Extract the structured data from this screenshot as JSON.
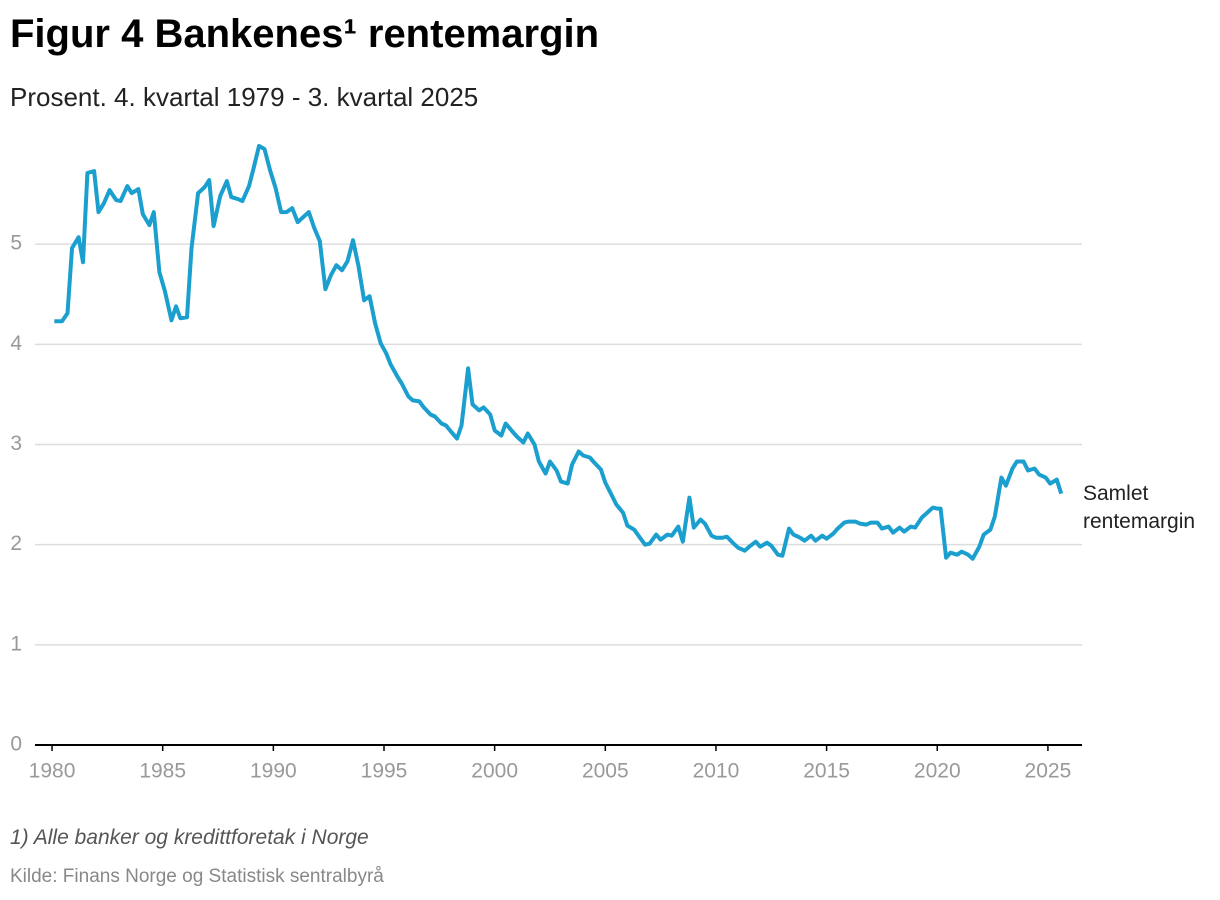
{
  "chart_data": {
    "type": "line",
    "title": "Figur 4 Bankenes¹ rentemargin",
    "subtitle": "Prosent. 4. kvartal 1979 - 3. kvartal 2025",
    "footnote": "1) Alle banker og kredittforetak i Norge",
    "source": "Kilde: Finans Norge og Statistisk sentralbyrå",
    "x": [
      1980.1,
      1980.45,
      1980.7,
      1980.9,
      1981.2,
      1981.4,
      1981.6,
      1981.9,
      1982.1,
      1982.35,
      1982.6,
      1982.9,
      1983.1,
      1983.4,
      1983.6,
      1983.9,
      1984.1,
      1984.4,
      1984.6,
      1984.85,
      1985.1,
      1985.4,
      1985.6,
      1985.8,
      1986.1,
      1986.3,
      1986.6,
      1986.9,
      1987.1,
      1987.3,
      1987.6,
      1987.9,
      1988.1,
      1988.4,
      1988.6,
      1988.9,
      1989.1,
      1989.35,
      1989.6,
      1989.85,
      1990.1,
      1990.35,
      1990.6,
      1990.85,
      1991.1,
      1991.35,
      1991.6,
      1991.85,
      1992.1,
      1992.35,
      1992.6,
      1992.85,
      1993.1,
      1993.35,
      1993.6,
      1993.85,
      1994.1,
      1994.35,
      1994.6,
      1994.85,
      1995.1,
      1995.3,
      1995.6,
      1995.8,
      1996.1,
      1996.3,
      1996.6,
      1996.8,
      1997.1,
      1997.3,
      1997.6,
      1997.8,
      1998.1,
      1998.3,
      1998.5,
      1998.8,
      1999.0,
      1999.3,
      1999.5,
      1999.8,
      2000.0,
      2000.3,
      2000.5,
      2000.8,
      2001.0,
      2001.3,
      2001.5,
      2001.8,
      2002.0,
      2002.3,
      2002.5,
      2002.8,
      2003.0,
      2003.3,
      2003.5,
      2003.8,
      2004.0,
      2004.3,
      2004.5,
      2004.8,
      2005.0,
      2005.3,
      2005.5,
      2005.8,
      2006.0,
      2006.3,
      2006.5,
      2006.8,
      2007.0,
      2007.3,
      2007.5,
      2007.8,
      2008.0,
      2008.3,
      2008.5,
      2008.8,
      2009.0,
      2009.3,
      2009.5,
      2009.8,
      2010.0,
      2010.3,
      2010.5,
      2010.8,
      2011.0,
      2011.3,
      2011.5,
      2011.8,
      2012.0,
      2012.3,
      2012.5,
      2012.8,
      2013.0,
      2013.3,
      2013.5,
      2013.8,
      2014.0,
      2014.3,
      2014.5,
      2014.8,
      2015.0,
      2015.3,
      2015.5,
      2015.8,
      2016.0,
      2016.3,
      2016.5,
      2016.8,
      2017.0,
      2017.3,
      2017.5,
      2017.8,
      2018.0,
      2018.3,
      2018.5,
      2018.8,
      2019.0,
      2019.3,
      2019.5,
      2019.8,
      2020.0,
      2020.15,
      2020.4,
      2020.6,
      2020.9,
      2021.1,
      2021.4,
      2021.6,
      2021.9,
      2022.1,
      2022.4,
      2022.6,
      2022.9,
      2023.1,
      2023.4,
      2023.6,
      2023.9,
      2024.1,
      2024.4,
      2024.6,
      2024.9,
      2025.1,
      2025.4,
      2025.6
    ],
    "series": [
      {
        "name": "Samlet rentemargin",
        "color": "#1a9fcf",
        "values": [
          4.23,
          4.23,
          4.31,
          4.96,
          5.07,
          4.82,
          5.71,
          5.73,
          5.32,
          5.41,
          5.54,
          5.44,
          5.43,
          5.58,
          5.51,
          5.55,
          5.3,
          5.19,
          5.32,
          4.72,
          4.53,
          4.24,
          4.38,
          4.26,
          4.27,
          4.96,
          5.51,
          5.57,
          5.64,
          5.18,
          5.48,
          5.63,
          5.47,
          5.45,
          5.43,
          5.58,
          5.75,
          5.98,
          5.95,
          5.74,
          5.56,
          5.32,
          5.32,
          5.36,
          5.22,
          5.27,
          5.32,
          5.16,
          5.03,
          4.55,
          4.69,
          4.79,
          4.74,
          4.83,
          5.04,
          4.78,
          4.44,
          4.48,
          4.21,
          4.01,
          3.91,
          3.8,
          3.68,
          3.61,
          3.48,
          3.44,
          3.43,
          3.37,
          3.3,
          3.28,
          3.21,
          3.19,
          3.11,
          3.06,
          3.19,
          3.76,
          3.4,
          3.34,
          3.37,
          3.3,
          3.14,
          3.09,
          3.21,
          3.13,
          3.08,
          3.02,
          3.11,
          3.0,
          2.83,
          2.71,
          2.83,
          2.74,
          2.63,
          2.61,
          2.8,
          2.93,
          2.89,
          2.87,
          2.82,
          2.75,
          2.62,
          2.49,
          2.4,
          2.32,
          2.19,
          2.15,
          2.09,
          2.0,
          2.01,
          2.1,
          2.05,
          2.1,
          2.09,
          2.18,
          2.03,
          2.47,
          2.17,
          2.25,
          2.21,
          2.09,
          2.07,
          2.07,
          2.08,
          2.01,
          1.97,
          1.94,
          1.98,
          2.03,
          1.98,
          2.02,
          1.99,
          1.9,
          1.89,
          2.16,
          2.1,
          2.07,
          2.04,
          2.09,
          2.04,
          2.09,
          2.06,
          2.11,
          2.16,
          2.22,
          2.23,
          2.23,
          2.21,
          2.2,
          2.22,
          2.22,
          2.16,
          2.18,
          2.12,
          2.17,
          2.13,
          2.18,
          2.17,
          2.27,
          2.31,
          2.37,
          2.36,
          2.36,
          1.87,
          1.92,
          1.9,
          1.93,
          1.9,
          1.86,
          1.98,
          2.1,
          2.15,
          2.28,
          2.67,
          2.59,
          2.76,
          2.83,
          2.83,
          2.74,
          2.76,
          2.7,
          2.67,
          2.61,
          2.65,
          2.51
        ]
      }
    ],
    "xlim": [
      1979.23,
      2026.54
    ],
    "xticks": [
      1980,
      1985,
      1990,
      1995,
      2000,
      2005,
      2010,
      2015,
      2020,
      2025
    ],
    "ylim": [
      0,
      6
    ],
    "yticks": [
      0,
      1,
      2,
      3,
      4,
      5
    ],
    "grid": true
  }
}
